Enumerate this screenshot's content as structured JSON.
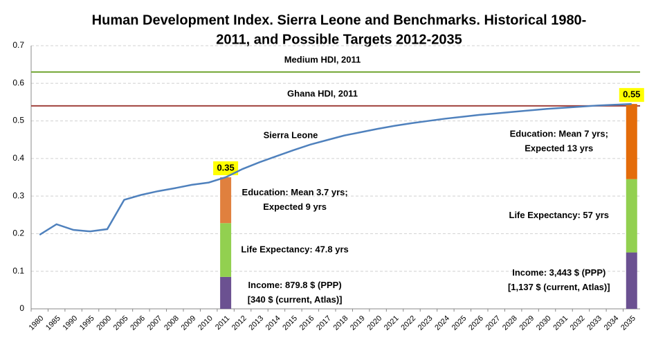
{
  "chart_data": {
    "type": "line",
    "title": [
      "Human Development Index. Sierra Leone and Benchmarks. Historical 1980-",
      "2011, and Possible Targets 2012-2035"
    ],
    "categories": [
      "1980",
      "1985",
      "1990",
      "1995",
      "2000",
      "2005",
      "2006",
      "2007",
      "2008",
      "2009",
      "2010",
      "2011",
      "2012",
      "2013",
      "2014",
      "2015",
      "2016",
      "2017",
      "2018",
      "2019",
      "2020",
      "2021",
      "2022",
      "2023",
      "2024",
      "2025",
      "2026",
      "2027",
      "2028",
      "2029",
      "2030",
      "2031",
      "2032",
      "2033",
      "2034",
      "2035"
    ],
    "series": [
      {
        "name": "Sierra Leone",
        "color": "#4f81bd",
        "values": [
          0.197,
          0.225,
          0.21,
          0.206,
          0.212,
          0.29,
          0.303,
          0.313,
          0.321,
          0.33,
          0.336,
          0.35,
          0.372,
          0.39,
          0.406,
          0.422,
          0.437,
          0.449,
          0.461,
          0.47,
          0.479,
          0.487,
          0.494,
          0.5,
          0.506,
          0.511,
          0.516,
          0.52,
          0.524,
          0.528,
          0.532,
          0.535,
          0.538,
          0.541,
          0.543,
          0.545
        ]
      }
    ],
    "reference_lines": [
      {
        "label": "Medium HDI, 2011",
        "value": 0.63,
        "color": "#77a93a"
      },
      {
        "label": "Ghana HDI, 2011",
        "value": 0.54,
        "color": "#a0413c"
      }
    ],
    "stacks": [
      {
        "category": "2011",
        "total": 0.35,
        "segments": [
          {
            "value": 0.085,
            "color": "#6b5191",
            "annotation": [
              "Income: 879.8 $ (PPP)",
              "[340 $ (current, Atlas)]"
            ]
          },
          {
            "value": 0.143,
            "color": "#92d050",
            "annotation": [
              "Life Expectancy: 47.8 yrs"
            ]
          },
          {
            "value": 0.122,
            "color": "#e0803e",
            "annotation": [
              "Education: Mean 3.7 yrs;",
              "Expected 9 yrs"
            ]
          }
        ]
      },
      {
        "category": "2035",
        "total": 0.55,
        "segments": [
          {
            "value": 0.15,
            "color": "#6b5191",
            "annotation": [
              "Income: 3,443 $ (PPP)",
              "[1,137 $ (current, Atlas)]"
            ]
          },
          {
            "value": 0.195,
            "color": "#92d050",
            "annotation": [
              "Life Expectancy: 57 yrs"
            ]
          },
          {
            "value": 0.2,
            "color": "#e46c0a",
            "annotation": [
              "Education: Mean 7 yrs;",
              "Expected 13 yrs"
            ]
          }
        ]
      }
    ],
    "ylim": [
      0,
      0.7
    ],
    "yticks": [
      0,
      0.1,
      0.2,
      0.3,
      0.4,
      0.5,
      0.6,
      0.7
    ],
    "grid": true
  }
}
